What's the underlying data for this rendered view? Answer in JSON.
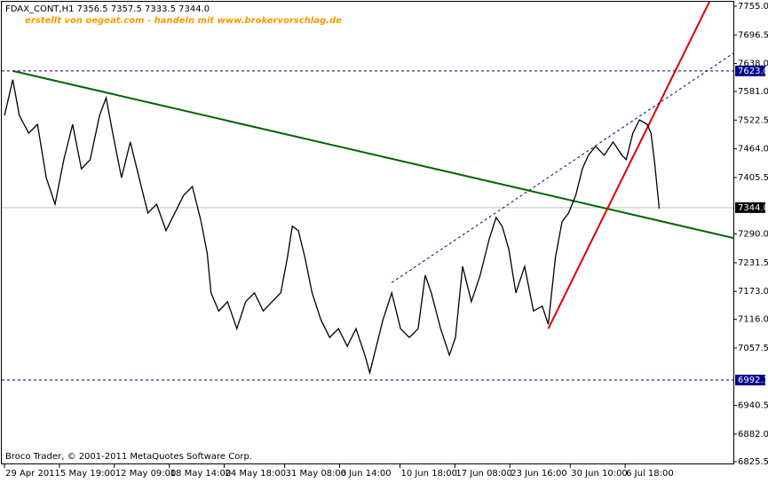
{
  "chart_data": {
    "type": "line",
    "title": "FDAX_CONT,H1  7356.5 7357.5 7333.5 7344.0",
    "subtitle": "erstellt von oegeat.com - handeln mit www.brokervorschlag.de",
    "copyright": "Broco Trader, © 2001-2011 MetaQuotes Software Corp.",
    "series": [
      {
        "color": "#000000",
        "x": [
          0,
          1.5,
          2.7,
          4.4,
          6,
          7.6,
          9.2,
          10.8,
          12.4,
          14,
          15.6,
          17.3,
          18.5,
          19.7,
          21.3,
          22.9,
          24.5,
          26.1,
          27.7,
          29.4,
          31,
          32.6,
          34.2,
          35.8,
          36.9,
          37.6,
          39,
          40.6,
          42.3,
          43.9,
          45.5,
          47.1,
          48.7,
          50.3,
          51.5,
          52.4,
          53.5,
          54.7,
          56,
          57.6,
          59.2,
          60.8,
          62.4,
          64,
          65.6,
          66.5,
          67.3,
          68.9,
          70.5,
          72.1,
          73.7,
          75.3,
          76.6,
          77.7,
          79.4,
          81,
          82.1,
          83.4,
          85,
          86.6,
          88.2,
          89.5,
          90.6,
          91.8,
          93.1,
          94.7,
          96.3,
          97.9,
          99,
          100.3,
          101.5,
          102.7,
          104,
          105.2,
          106.3,
          107.6,
          109.2,
          110.8,
          112.4,
          113.2,
          114.4,
          115.6,
          117,
          117.7,
          118.4,
          119.2
        ],
        "values": [
          7532,
          7605,
          7532,
          7496,
          7514,
          7405,
          7351,
          7442,
          7514,
          7423,
          7442,
          7532,
          7568,
          7496,
          7405,
          7478,
          7405,
          7333,
          7351,
          7297,
          7333,
          7369,
          7387,
          7315,
          7251,
          7170,
          7133,
          7152,
          7097,
          7152,
          7170,
          7133,
          7152,
          7170,
          7242,
          7306,
          7297,
          7242,
          7170,
          7115,
          7079,
          7097,
          7061,
          7097,
          7043,
          7007,
          7043,
          7115,
          7170,
          7097,
          7079,
          7097,
          7206,
          7170,
          7097,
          7043,
          7079,
          7224,
          7152,
          7206,
          7278,
          7324,
          7306,
          7260,
          7170,
          7224,
          7133,
          7143,
          7106,
          7242,
          7315,
          7333,
          7369,
          7423,
          7451,
          7469,
          7451,
          7478,
          7451,
          7442,
          7496,
          7523,
          7514,
          7496,
          7432,
          7342
        ]
      }
    ],
    "trendlines": [
      {
        "color": "#006400",
        "style": "solid",
        "x": [
          1.5,
          132.7
        ],
        "values": [
          7623,
          7282
        ]
      },
      {
        "color": "#e00000",
        "style": "solid",
        "x": [
          99,
          128.5
        ],
        "values": [
          7097,
          7768
        ]
      },
      {
        "color": "#00008b",
        "style": "dashed",
        "x": [
          70.5,
          132.7
        ],
        "values": [
          7191,
          7659
        ]
      }
    ],
    "levels": [
      {
        "value": 7623,
        "label": "7623.0",
        "color": "#00008b",
        "style": "dashed"
      },
      {
        "value": 7344,
        "label": "7344.0",
        "color": "#000000",
        "style": "solid"
      },
      {
        "value": 6992.1,
        "label": "6992.1",
        "color": "#00008b",
        "style": "dashed"
      }
    ],
    "xlim": [
      -0.5,
      132.7
    ],
    "ylim": [
      6825.5,
      7755
    ],
    "xticks": [
      {
        "value": 0,
        "label": "29 Apr 2011"
      },
      {
        "value": 10,
        "label": "5 May 19:00"
      },
      {
        "value": 20,
        "label": "12 May 09:00"
      },
      {
        "value": 30,
        "label": "18 May 14:00"
      },
      {
        "value": 40,
        "label": "24 May 18:00"
      },
      {
        "value": 51,
        "label": "31 May 08:00"
      },
      {
        "value": 61,
        "label": "6 Jun 14:00"
      },
      {
        "value": 72,
        "label": "10 Jun 18:00"
      },
      {
        "value": 82,
        "label": "17 Jun 08:00"
      },
      {
        "value": 92,
        "label": "23 Jun 16:00"
      },
      {
        "value": 103,
        "label": "30 Jun 10:00"
      },
      {
        "value": 113,
        "label": "6 Jul 18:00"
      }
    ],
    "yticks": [
      {
        "value": 7755,
        "label": "7755.0"
      },
      7696.5,
      {
        "value": 7638,
        "label": "7638.0"
      },
      {
        "value": 7581,
        "label": "7581.0"
      },
      7522.5,
      {
        "value": 7464,
        "label": "7464.0"
      },
      7405.5,
      {
        "value": 7290,
        "label": "7290.0"
      },
      7231.5,
      {
        "value": 7173,
        "label": "7173.0"
      },
      {
        "value": 7116,
        "label": "7116.0"
      },
      7057.5,
      6940.5,
      {
        "value": 6882,
        "label": "6882.0"
      },
      6825.5
    ],
    "grid": false
  }
}
